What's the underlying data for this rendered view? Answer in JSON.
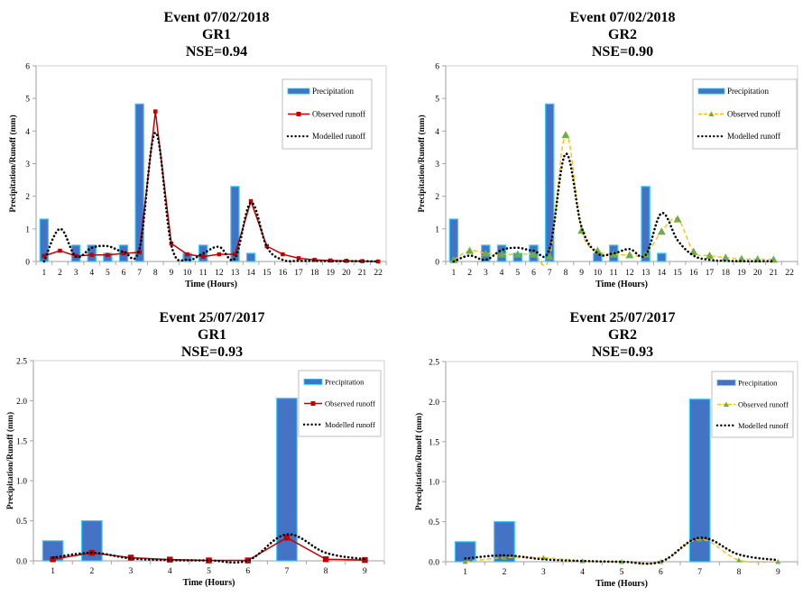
{
  "chart_data": [
    {
      "id": "c1",
      "type": "bar+line",
      "title": [
        "Event 07/02/2018",
        "GR1",
        "NSE=0.94"
      ],
      "xlabel": "Time (Hours)",
      "ylabel": "Precipitation/Runoff (mm)",
      "ylim": [
        0,
        6
      ],
      "yticks": [
        "0",
        "1",
        "2",
        "3",
        "4",
        "5",
        "6"
      ],
      "ytick_values": [
        0,
        1,
        2,
        3,
        4,
        5,
        6
      ],
      "categories": [
        "1",
        "2",
        "3",
        "4",
        "5",
        "6",
        "7",
        "8",
        "9",
        "10",
        "11",
        "12",
        "13",
        "14",
        "15",
        "16",
        "17",
        "18",
        "19",
        "20",
        "21",
        "22"
      ],
      "legend_position": "top-right",
      "observed_style": "red-square",
      "series": [
        {
          "name": "Precipitation",
          "kind": "bar",
          "color": "#4472C4",
          "edge": "#33CCFF",
          "values": [
            1.3,
            0,
            0.5,
            0.5,
            0.25,
            0.5,
            4.83,
            0,
            0,
            0.25,
            0.5,
            0,
            2.3,
            0.25,
            0,
            0,
            0,
            0,
            0,
            0,
            0,
            0
          ]
        },
        {
          "name": "Observed runoff",
          "kind": "line",
          "color": "#C00000",
          "values": [
            0.17,
            0.33,
            0.17,
            0.2,
            0.2,
            0.25,
            0.28,
            4.6,
            0.55,
            0.22,
            0.15,
            0.22,
            0.22,
            1.85,
            0.47,
            0.22,
            0.1,
            0.05,
            0.03,
            0.02,
            0.01,
            0.0
          ]
        },
        {
          "name": "Modelled runoff",
          "kind": "dotted",
          "color": "#000000",
          "values": [
            0.0,
            1.0,
            0.15,
            0.42,
            0.47,
            0.3,
            0.4,
            3.95,
            0.5,
            0.05,
            0.25,
            0.45,
            0.1,
            1.8,
            0.45,
            0.05,
            0.02,
            0.02,
            0.01,
            0.01,
            0.01,
            0.0
          ]
        }
      ]
    },
    {
      "id": "c2",
      "type": "bar+line",
      "title": [
        "Event 07/02/2018",
        "GR2",
        "NSE=0.90"
      ],
      "xlabel": "Time (Hours)",
      "ylabel": "Precipitation/Runoff (mm)",
      "ylim": [
        0,
        6
      ],
      "yticks": [
        "0",
        "1",
        "2",
        "3",
        "4",
        "5",
        "6"
      ],
      "ytick_values": [
        0,
        1,
        2,
        3,
        4,
        5,
        6
      ],
      "categories": [
        "1",
        "2",
        "3",
        "4",
        "5",
        "6",
        "7",
        "8",
        "9",
        "10",
        "11",
        "12",
        "13",
        "14",
        "15",
        "16",
        "17",
        "18",
        "19",
        "20",
        "21",
        "22"
      ],
      "legend_position": "top-right",
      "observed_style": "yellow-dashed-green-triangle",
      "series": [
        {
          "name": "Precipitation",
          "kind": "bar",
          "color": "#4472C4",
          "edge": "#33CCFF",
          "values": [
            1.3,
            0,
            0.5,
            0.5,
            0.25,
            0.5,
            4.83,
            0,
            0,
            0.25,
            0.5,
            0,
            2.3,
            0.25,
            0,
            0,
            0,
            0,
            0,
            0,
            0,
            0
          ]
        },
        {
          "name": "Observed runoff",
          "kind": "line",
          "color": "#FFC000",
          "marker_color": "#70AD47",
          "values": [
            0.05,
            0.33,
            0.25,
            0.22,
            0.22,
            0.22,
            0.15,
            3.88,
            0.95,
            0.33,
            0.22,
            0.2,
            0.22,
            0.92,
            1.3,
            0.3,
            0.18,
            0.12,
            0.08,
            0.07,
            0.06,
            null
          ]
        },
        {
          "name": "Modelled runoff",
          "kind": "dotted",
          "color": "#000000",
          "values": [
            0.0,
            0.18,
            0.05,
            0.35,
            0.42,
            0.33,
            0.4,
            3.3,
            1.05,
            0.25,
            0.25,
            0.38,
            0.2,
            1.48,
            0.65,
            0.18,
            0.05,
            0.02,
            0.01,
            0.01,
            0.01,
            null
          ]
        }
      ]
    },
    {
      "id": "c3",
      "type": "bar+line",
      "title": [
        "Event 25/07/2017",
        "GR1",
        "NSE=0.93"
      ],
      "xlabel": "Time (Hours)",
      "ylabel": "Precipitation/Runoff (mm)",
      "ylim": [
        0,
        2.5
      ],
      "yticks": [
        "0.0",
        "0.5",
        "1.0",
        "1.5",
        "2.0",
        "2.5"
      ],
      "ytick_values": [
        0,
        0.5,
        1.0,
        1.5,
        2.0,
        2.5
      ],
      "categories": [
        "1",
        "2",
        "3",
        "4",
        "5",
        "6",
        "7",
        "8",
        "9"
      ],
      "legend_position": "top-right",
      "observed_style": "red-square",
      "series": [
        {
          "name": "Precipitation",
          "kind": "bar",
          "color": "#4472C4",
          "edge": "#33CCFF",
          "values": [
            0.25,
            0.5,
            0,
            0,
            0,
            0,
            2.03,
            0,
            0
          ]
        },
        {
          "name": "Observed runoff",
          "kind": "line",
          "color": "#C00000",
          "values": [
            0.02,
            0.1,
            0.04,
            0.015,
            0.005,
            0.005,
            0.29,
            0.02,
            0.01
          ]
        },
        {
          "name": "Modelled runoff",
          "kind": "dotted",
          "color": "#000000",
          "values": [
            0.04,
            0.1,
            0.03,
            0.01,
            0.005,
            0.005,
            0.33,
            0.1,
            0.02
          ]
        }
      ]
    },
    {
      "id": "c4",
      "type": "bar+line",
      "title": [
        "Event 25/07/2017",
        "GR2",
        "NSE=0.93"
      ],
      "xlabel": "Time (Hours)",
      "ylabel": "Precipitation/Runoff (mm)",
      "ylim": [
        0,
        2.5
      ],
      "yticks": [
        "0.0",
        "0.5",
        "1.0",
        "1.5",
        "2.0",
        "2.5"
      ],
      "ytick_values": [
        0,
        0.5,
        1.0,
        1.5,
        2.0,
        2.5
      ],
      "categories": [
        "1",
        "2",
        "3",
        "4",
        "5",
        "6",
        "7",
        "8",
        "9"
      ],
      "legend_position": "top-right",
      "observed_style": "yellow-dashed-green-triangle",
      "series": [
        {
          "name": "Precipitation",
          "kind": "bar",
          "color": "#4472C4",
          "edge": "#33CCFF",
          "values": [
            0.25,
            0.5,
            0,
            0,
            0,
            0,
            2.03,
            0,
            0
          ]
        },
        {
          "name": "Observed runoff",
          "kind": "line",
          "color": "#FFC000",
          "marker_color": "#70AD47",
          "values": [
            0.0,
            0.05,
            0.05,
            0.01,
            0.0,
            0.0,
            0.28,
            0.02,
            0.0
          ]
        },
        {
          "name": "Modelled runoff",
          "kind": "dotted",
          "color": "#000000",
          "values": [
            0.04,
            0.08,
            0.03,
            0.01,
            0.0,
            0.0,
            0.3,
            0.09,
            0.02
          ]
        }
      ]
    }
  ]
}
